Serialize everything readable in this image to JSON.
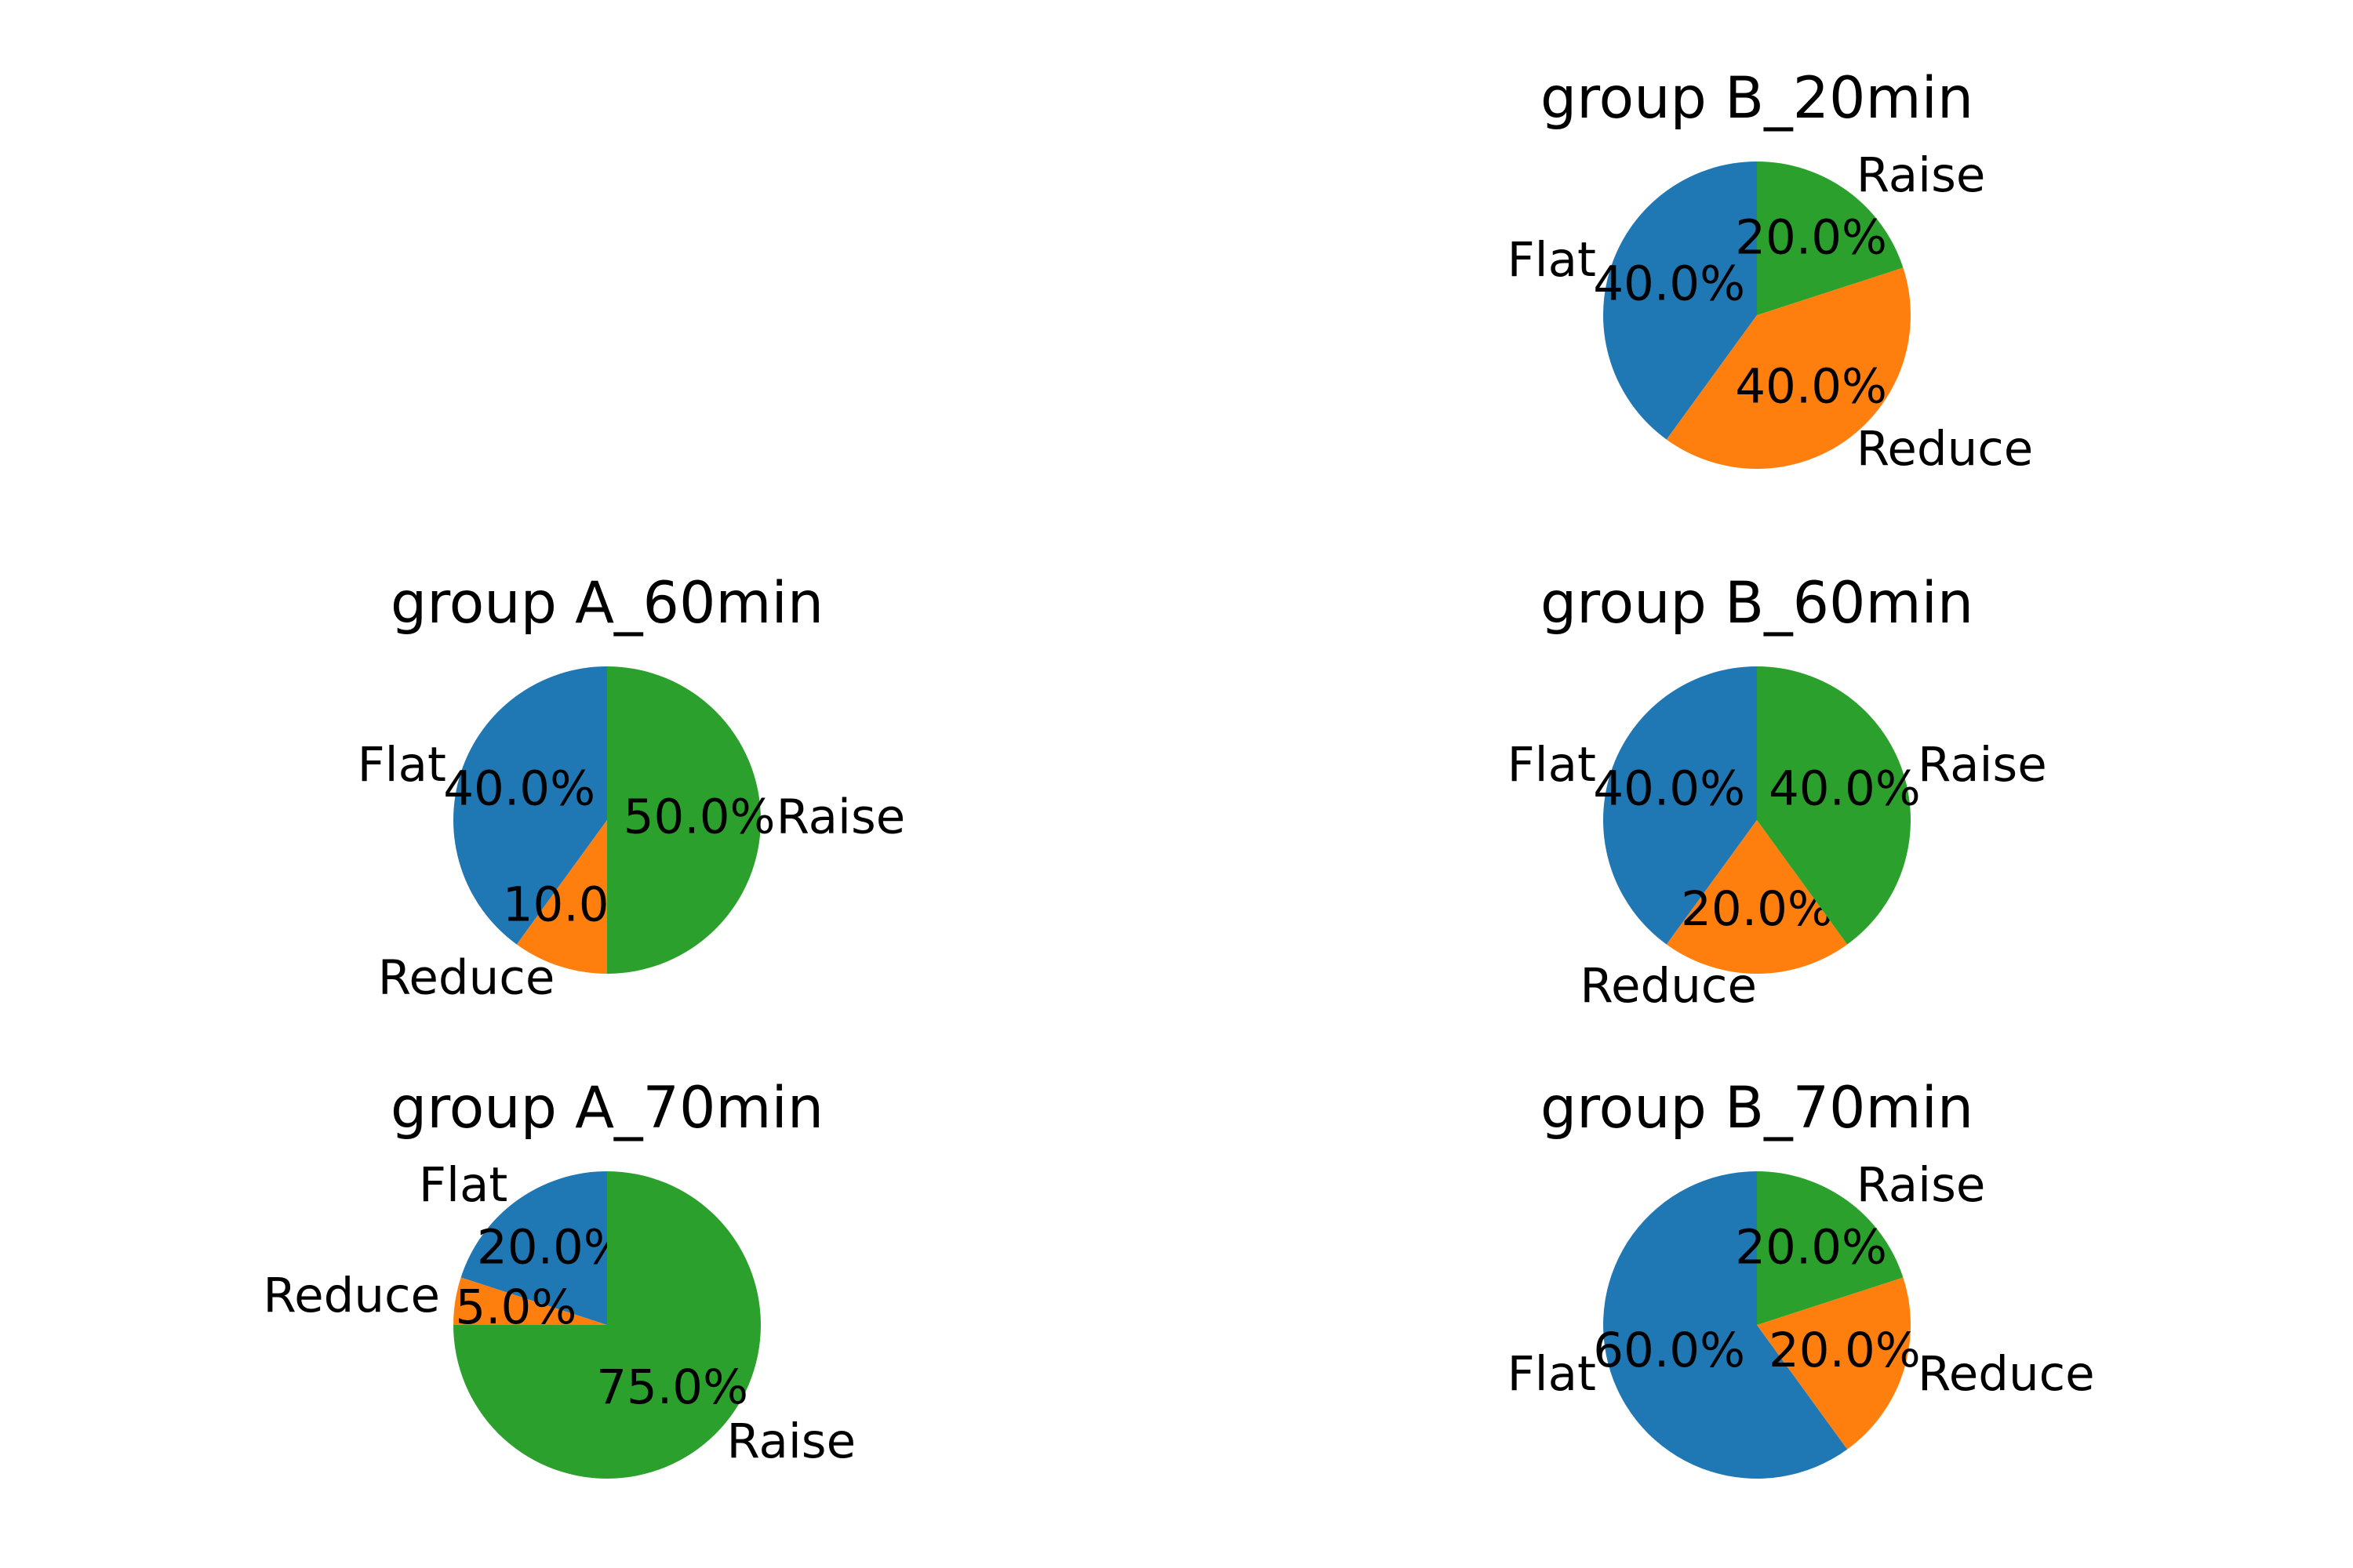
{
  "colors": {
    "Flat": "#1f77b4",
    "Reduce": "#ff7f0e",
    "Raise": "#2ca02c"
  },
  "chart_data": [
    {
      "type": "pie",
      "title": "group B_20min",
      "slices": [
        {
          "label": "Flat",
          "value": 40.0,
          "pct_label": "40.0%"
        },
        {
          "label": "Reduce",
          "value": 40.0,
          "pct_label": "40.0%"
        },
        {
          "label": "Raise",
          "value": 20.0,
          "pct_label": "20.0%"
        }
      ]
    },
    {
      "type": "pie",
      "title": "group A_60min",
      "slices": [
        {
          "label": "Flat",
          "value": 40.0,
          "pct_label": "40.0%"
        },
        {
          "label": "Reduce",
          "value": 10.0,
          "pct_label": "10.0%"
        },
        {
          "label": "Raise",
          "value": 50.0,
          "pct_label": "50.0%"
        }
      ]
    },
    {
      "type": "pie",
      "title": "group B_60min",
      "slices": [
        {
          "label": "Flat",
          "value": 40.0,
          "pct_label": "40.0%"
        },
        {
          "label": "Reduce",
          "value": 20.0,
          "pct_label": "20.0%"
        },
        {
          "label": "Raise",
          "value": 40.0,
          "pct_label": "40.0%"
        }
      ]
    },
    {
      "type": "pie",
      "title": "group A_70min",
      "slices": [
        {
          "label": "Flat",
          "value": 20.0,
          "pct_label": "20.0%"
        },
        {
          "label": "Reduce",
          "value": 5.0,
          "pct_label": "5.0%"
        },
        {
          "label": "Raise",
          "value": 75.0,
          "pct_label": "75.0%"
        }
      ]
    },
    {
      "type": "pie",
      "title": "group B_70min",
      "slices": [
        {
          "label": "Flat",
          "value": 60.0,
          "pct_label": "60.0%"
        },
        {
          "label": "Reduce",
          "value": 20.0,
          "pct_label": "20.0%"
        },
        {
          "label": "Raise",
          "value": 20.0,
          "pct_label": "20.0%"
        }
      ]
    }
  ]
}
